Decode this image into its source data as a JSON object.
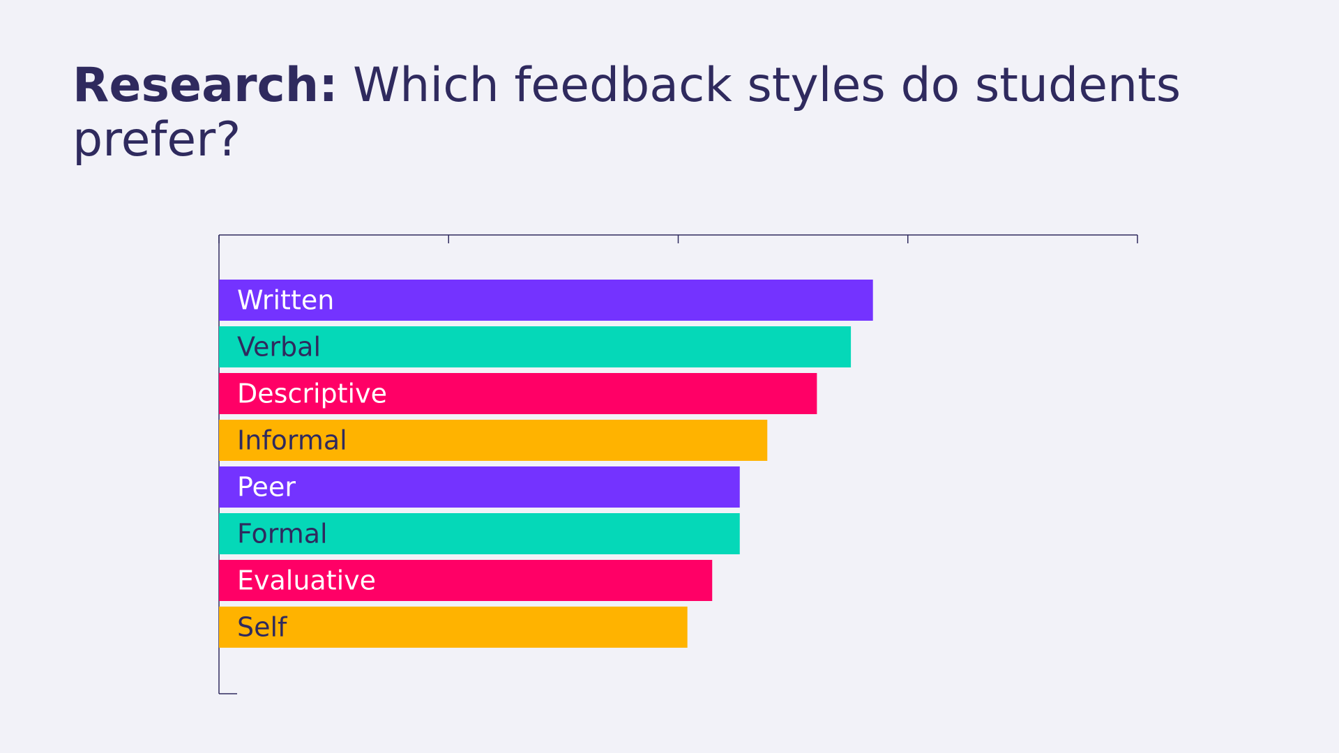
{
  "title": {
    "bold": "Research:",
    "rest": " Which feedback styles do students prefer?"
  },
  "colors": {
    "background": "#f2f2f8",
    "title_text": "#2f2a5e",
    "axis": "#2f2a5e",
    "purple": "#7433ff",
    "teal": "#05d8b8",
    "pink": "#ff0066",
    "amber": "#ffb300"
  },
  "chart_data": {
    "type": "bar",
    "orientation": "horizontal",
    "categories": [
      "Written",
      "Verbal",
      "Descriptive",
      "Informal",
      "Peer",
      "Formal",
      "Evaluative",
      "Self"
    ],
    "values": [
      71.2,
      68.8,
      65.1,
      59.7,
      56.7,
      56.7,
      53.7,
      51.0
    ],
    "bar_colors": [
      "#7433ff",
      "#05d8b8",
      "#ff0066",
      "#ffb300",
      "#7433ff",
      "#05d8b8",
      "#ff0066",
      "#ffb300"
    ],
    "label_colors": [
      "#ffffff",
      "#2f2a5e",
      "#ffffff",
      "#2f2a5e",
      "#ffffff",
      "#2f2a5e",
      "#ffffff",
      "#2f2a5e"
    ],
    "xlim": [
      0,
      100
    ],
    "x_ticks": [
      0,
      25,
      50,
      75,
      100
    ],
    "x_tick_labels_shown": false,
    "grid": false,
    "legend": "none",
    "xlabel": "",
    "ylabel": ""
  }
}
